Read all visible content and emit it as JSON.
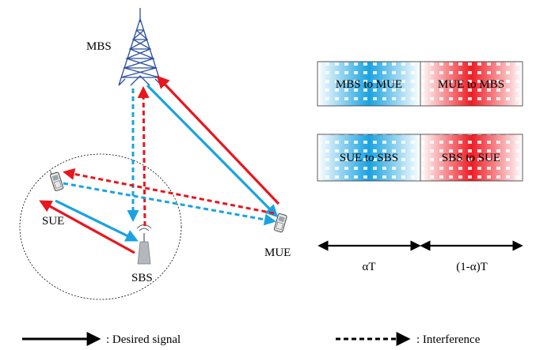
{
  "nodes": {
    "mbs": "MBS",
    "sue": "SUE",
    "sbs": "SBS",
    "mue": "MUE"
  },
  "frames": {
    "row1": {
      "left": "MBS to MUE",
      "right": "MUE to MBS"
    },
    "row2": {
      "left": "SUE to SBS",
      "right": "SBS to SUE"
    }
  },
  "timeline": {
    "left_label": "αT",
    "right_label": "(1-α)T"
  },
  "legend": {
    "desired": ": Desired signal",
    "interference": ": Interference"
  },
  "colors": {
    "blue": "#1aa3e0",
    "red": "#e8161e",
    "tower": "#2b4f9e"
  },
  "icons": {
    "mbs": "cell-tower-icon",
    "sue": "mobile-phone-icon",
    "mue": "mobile-phone-icon",
    "sbs": "small-cell-antenna-icon"
  }
}
